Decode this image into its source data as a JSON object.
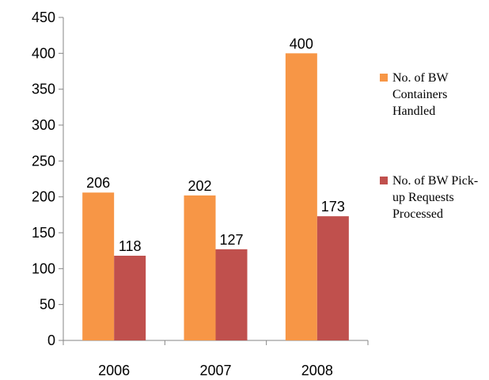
{
  "chart_data": {
    "type": "bar",
    "categories": [
      "2006",
      "2007",
      "2008"
    ],
    "series": [
      {
        "name": "No. of BW Containers Handled",
        "color": "#f79646",
        "values": [
          206,
          202,
          400
        ]
      },
      {
        "name": "No. of BW Pick-up Requests Processed",
        "color": "#c0504d",
        "values": [
          118,
          127,
          173
        ]
      }
    ],
    "ylim": [
      0,
      450
    ],
    "yticks": [
      0,
      50,
      100,
      150,
      200,
      250,
      300,
      350,
      400,
      450
    ],
    "grid": false,
    "legend": "right"
  }
}
